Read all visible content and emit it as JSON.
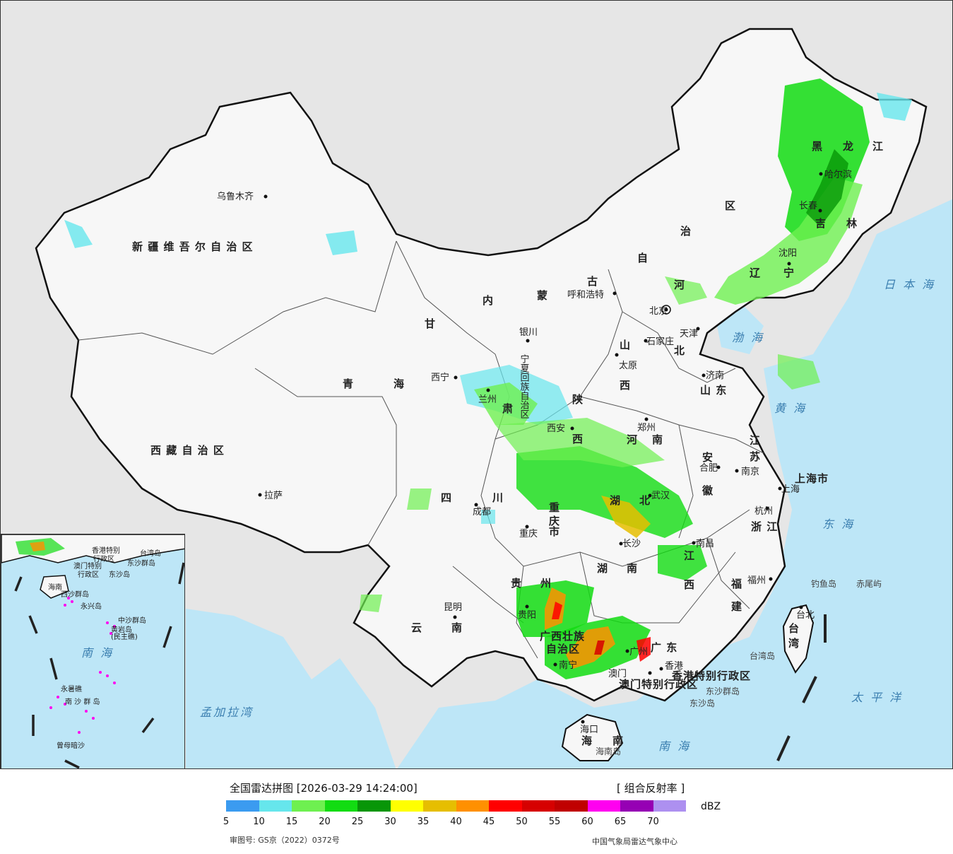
{
  "legend": {
    "title": "全国雷达拼图 [2026-03-29 14:24:00]",
    "product": "[ 组合反射率 ]",
    "unit": "dBZ",
    "ticks": [
      "5",
      "10",
      "15",
      "20",
      "25",
      "30",
      "35",
      "40",
      "45",
      "50",
      "55",
      "60",
      "65",
      "70"
    ],
    "colors": [
      "#3b9bf0",
      "#66e6ec",
      "#6ef050",
      "#12dc12",
      "#089608",
      "#ffff00",
      "#e6be00",
      "#ff9000",
      "#ff0000",
      "#d60000",
      "#c00000",
      "#ff00f0",
      "#9600b4",
      "#ad90f0"
    ],
    "review_number": "审图号: GS京（2022）0372号",
    "organization": "中国气象局雷达气象中心"
  },
  "map": {
    "regions": [
      {
        "id": "xinjiang",
        "text": "新 疆 维 吾 尔 自 治 区"
      },
      {
        "id": "xizang",
        "text": "西 藏 自 治 区"
      },
      {
        "id": "qinghai-1",
        "text": "青"
      },
      {
        "id": "qinghai-2",
        "text": "海"
      },
      {
        "id": "gansu",
        "text": "甘"
      },
      {
        "id": "gansu-2",
        "text": "肃"
      },
      {
        "id": "nmg-1",
        "text": "内"
      },
      {
        "id": "nmg-2",
        "text": "蒙"
      },
      {
        "id": "nmg-3",
        "text": "古"
      },
      {
        "id": "nmg-4",
        "text": "自"
      },
      {
        "id": "nmg-5",
        "text": "治"
      },
      {
        "id": "nmg-6",
        "text": "区"
      },
      {
        "id": "hlj-1",
        "text": "黑"
      },
      {
        "id": "hlj-2",
        "text": "龙"
      },
      {
        "id": "hlj-3",
        "text": "江"
      },
      {
        "id": "jilin-1",
        "text": "吉"
      },
      {
        "id": "jilin-2",
        "text": "林"
      },
      {
        "id": "liaoning-1",
        "text": "辽"
      },
      {
        "id": "liaoning-2",
        "text": "宁"
      },
      {
        "id": "hebei-1",
        "text": "河"
      },
      {
        "id": "hebei-2",
        "text": "北"
      },
      {
        "id": "shanxi-1",
        "text": "山"
      },
      {
        "id": "shanxi-2",
        "text": "西"
      },
      {
        "id": "shandong",
        "text": "山 东"
      },
      {
        "id": "shaanxi-1",
        "text": "陕"
      },
      {
        "id": "shaanxi-2",
        "text": "西"
      },
      {
        "id": "henan-1",
        "text": "河"
      },
      {
        "id": "henan-2",
        "text": "南"
      },
      {
        "id": "sichuan-1",
        "text": "四"
      },
      {
        "id": "sichuan-2",
        "text": "川"
      },
      {
        "id": "chongqing-1",
        "text": "重"
      },
      {
        "id": "chongqing-2",
        "text": "庆"
      },
      {
        "id": "chongqing-3",
        "text": "市"
      },
      {
        "id": "hubei-1",
        "text": "湖"
      },
      {
        "id": "hubei-2",
        "text": "北"
      },
      {
        "id": "anhui-1",
        "text": "安"
      },
      {
        "id": "anhui-2",
        "text": "徽"
      },
      {
        "id": "jiangsu-1",
        "text": "江"
      },
      {
        "id": "jiangsu-2",
        "text": "苏"
      },
      {
        "id": "shanghai",
        "text": "上海市"
      },
      {
        "id": "zhejiang",
        "text": "浙 江"
      },
      {
        "id": "jiangxi-1",
        "text": "江"
      },
      {
        "id": "jiangxi-2",
        "text": "西"
      },
      {
        "id": "hunan-1",
        "text": "湖"
      },
      {
        "id": "hunan-2",
        "text": "南"
      },
      {
        "id": "guizhou-1",
        "text": "贵"
      },
      {
        "id": "guizhou-2",
        "text": "州"
      },
      {
        "id": "yunnan-1",
        "text": "云"
      },
      {
        "id": "yunnan-2",
        "text": "南"
      },
      {
        "id": "fujian-1",
        "text": "福"
      },
      {
        "id": "fujian-2",
        "text": "建"
      },
      {
        "id": "guangxi-1",
        "text": "广西壮族"
      },
      {
        "id": "guangxi-2",
        "text": "自治区"
      },
      {
        "id": "guangdong",
        "text": "广  东"
      },
      {
        "id": "hainan-1",
        "text": "海"
      },
      {
        "id": "hainan-2",
        "text": "南"
      },
      {
        "id": "taiwan-1",
        "text": "台"
      },
      {
        "id": "taiwan-2",
        "text": "湾"
      },
      {
        "id": "ningxia",
        "text": "宁夏回族自治区"
      },
      {
        "id": "hk-sar",
        "text": "香港特别行政区"
      },
      {
        "id": "macau-sar",
        "text": "澳门特别行政区"
      }
    ],
    "cities": [
      {
        "id": "urumqi",
        "text": "乌鲁木齐"
      },
      {
        "id": "lhasa",
        "text": "拉萨"
      },
      {
        "id": "xining",
        "text": "西宁"
      },
      {
        "id": "lanzhou",
        "text": "兰州"
      },
      {
        "id": "yinchuan",
        "text": "银川"
      },
      {
        "id": "hohhot",
        "text": "呼和浩特"
      },
      {
        "id": "beijing",
        "text": "北京"
      },
      {
        "id": "tianjin",
        "text": "天津"
      },
      {
        "id": "shijiazhuang",
        "text": "石家庄"
      },
      {
        "id": "taiyuan",
        "text": "太原"
      },
      {
        "id": "jinan",
        "text": "济南"
      },
      {
        "id": "xian",
        "text": "西安"
      },
      {
        "id": "zhengzhou",
        "text": "郑州"
      },
      {
        "id": "chengdu",
        "text": "成都"
      },
      {
        "id": "chongqing",
        "text": "重庆"
      },
      {
        "id": "wuhan",
        "text": "武汉"
      },
      {
        "id": "hefei",
        "text": "合肥"
      },
      {
        "id": "nanjing",
        "text": "南京"
      },
      {
        "id": "shanghai",
        "text": "上海"
      },
      {
        "id": "hangzhou",
        "text": "杭州"
      },
      {
        "id": "nanchang",
        "text": "南昌"
      },
      {
        "id": "changsha",
        "text": "长沙"
      },
      {
        "id": "guiyang",
        "text": "贵阳"
      },
      {
        "id": "kunming",
        "text": "昆明"
      },
      {
        "id": "fuzhou",
        "text": "福州"
      },
      {
        "id": "taipei",
        "text": "台北"
      },
      {
        "id": "nanning",
        "text": "南宁"
      },
      {
        "id": "guangzhou",
        "text": "广州"
      },
      {
        "id": "hongkong",
        "text": "香港"
      },
      {
        "id": "macau",
        "text": "澳门"
      },
      {
        "id": "haikou",
        "text": "海口"
      },
      {
        "id": "harbin",
        "text": "哈尔滨"
      },
      {
        "id": "changchun",
        "text": "长春"
      },
      {
        "id": "shenyang",
        "text": "沈阳"
      }
    ],
    "seas": [
      {
        "id": "bohai",
        "text": "渤 海"
      },
      {
        "id": "yellow-sea",
        "text": "黄 海"
      },
      {
        "id": "east-sea",
        "text": "东 海"
      },
      {
        "id": "south-sea",
        "text": "南 海"
      },
      {
        "id": "sea-of-japan",
        "text": "日 本 海"
      },
      {
        "id": "pacific",
        "text": "太 平 洋"
      },
      {
        "id": "bay-of-bengal",
        "text": "孟加拉湾"
      }
    ],
    "islands": [
      {
        "id": "diaoyu",
        "text": "钓鱼岛"
      },
      {
        "id": "chiwei",
        "text": "赤尾屿"
      },
      {
        "id": "taiwan-island",
        "text": "台湾岛"
      },
      {
        "id": "dongsha-islands",
        "text": "东沙群岛"
      },
      {
        "id": "dongsha-island",
        "text": "东沙岛"
      },
      {
        "id": "hainan-island",
        "text": "海南岛"
      }
    ]
  },
  "inset": {
    "labels": [
      {
        "id": "inset-hk",
        "text": "香港特别"
      },
      {
        "id": "inset-hk-2",
        "text": "行政区"
      },
      {
        "id": "inset-macau",
        "text": "澳门特别"
      },
      {
        "id": "inset-macau-2",
        "text": "行政区"
      },
      {
        "id": "inset-dongsha",
        "text": "东沙群岛"
      },
      {
        "id": "inset-dongsha-2",
        "text": "东沙岛"
      },
      {
        "id": "inset-taiwan",
        "text": "台湾岛"
      },
      {
        "id": "inset-hainan",
        "text": "海南"
      },
      {
        "id": "inset-xisha",
        "text": "西沙群岛"
      },
      {
        "id": "inset-yongxing",
        "text": "永兴岛"
      },
      {
        "id": "inset-zhongsha",
        "text": "中沙群岛"
      },
      {
        "id": "inset-huangyan",
        "text": "黄岩岛"
      },
      {
        "id": "inset-huangyan-2",
        "text": "(民主礁)"
      },
      {
        "id": "inset-south-sea",
        "text": "南 海"
      },
      {
        "id": "inset-nansha",
        "text": "南 沙 群 岛"
      },
      {
        "id": "inset-yongshu",
        "text": "永暑礁"
      },
      {
        "id": "inset-zengmu",
        "text": "曾母暗沙"
      }
    ]
  }
}
